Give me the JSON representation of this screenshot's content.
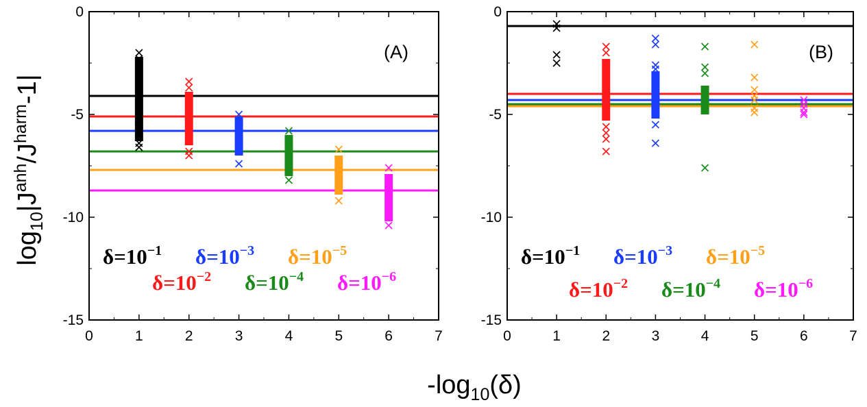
{
  "figure": {
    "ylabel": {
      "pre": "log",
      "sub": "10",
      "mid": "|J",
      "sup1": "anh",
      "slash": "/J",
      "sup2": "harm",
      "post": "-1|"
    },
    "xlabel": {
      "pre": "-log",
      "sub": "10",
      "post": "(δ)"
    }
  },
  "chart_data": [
    {
      "type": "scatter",
      "panel_label": "(A)",
      "xlim": [
        0,
        7
      ],
      "ylim": [
        -15,
        0
      ],
      "xticks": [
        "0",
        "1",
        "2",
        "3",
        "4",
        "5",
        "6",
        "7"
      ],
      "yticks": [
        "0",
        "-5",
        "-10",
        "-15"
      ],
      "legend": [
        {
          "base": "δ=10",
          "exp": "−1",
          "color": "#000000"
        },
        {
          "base": "δ=10",
          "exp": "−3",
          "color": "#1a3cff"
        },
        {
          "base": "δ=10",
          "exp": "−5",
          "color": "#ff9f1a"
        },
        {
          "base": "δ=10",
          "exp": "−2",
          "color": "#ff1a1a"
        },
        {
          "base": "δ=10",
          "exp": "−4",
          "color": "#1a8a1a"
        },
        {
          "base": "δ=10",
          "exp": "−6",
          "color": "#ff1aff"
        }
      ],
      "series": [
        {
          "name": "δ=10^-1",
          "color": "#000000",
          "hline": -4.1,
          "x": 1,
          "range": [
            -6.3,
            -2.2
          ],
          "outliers": [
            -6.6,
            -6.4,
            -2.0,
            -2.3
          ]
        },
        {
          "name": "δ=10^-2",
          "color": "#ff1a1a",
          "hline": -5.1,
          "x": 2,
          "range": [
            -6.5,
            -3.9
          ],
          "outliers": [
            -7.0,
            -6.8,
            -3.4,
            -3.7
          ]
        },
        {
          "name": "δ=10^-3",
          "color": "#1a3cff",
          "hline": -5.8,
          "x": 3,
          "range": [
            -7.0,
            -5.1
          ],
          "outliers": [
            -7.4,
            -5.0
          ]
        },
        {
          "name": "δ=10^-4",
          "color": "#1a8a1a",
          "hline": -6.8,
          "x": 4,
          "range": [
            -8.0,
            -6.0
          ],
          "outliers": [
            -8.2,
            -5.8
          ]
        },
        {
          "name": "δ=10^-5",
          "color": "#ff9f1a",
          "hline": -7.7,
          "x": 5,
          "range": [
            -8.9,
            -7.0
          ],
          "outliers": [
            -9.2,
            -6.7
          ]
        },
        {
          "name": "δ=10^-6",
          "color": "#ff1aff",
          "hline": -8.7,
          "x": 6,
          "range": [
            -10.2,
            -7.9
          ],
          "outliers": [
            -10.4,
            -9.9,
            -7.6
          ]
        }
      ]
    },
    {
      "type": "scatter",
      "panel_label": "(B)",
      "xlim": [
        0,
        7
      ],
      "ylim": [
        -15,
        0
      ],
      "xticks": [
        "0",
        "1",
        "2",
        "3",
        "4",
        "5",
        "6",
        "7"
      ],
      "yticks": [
        "0",
        "-5",
        "-10",
        "-15"
      ],
      "legend": [
        {
          "base": "δ=10",
          "exp": "−1",
          "color": "#000000"
        },
        {
          "base": "δ=10",
          "exp": "−3",
          "color": "#1a3cff"
        },
        {
          "base": "δ=10",
          "exp": "−5",
          "color": "#ff9f1a"
        },
        {
          "base": "δ=10",
          "exp": "−2",
          "color": "#ff1a1a"
        },
        {
          "base": "δ=10",
          "exp": "−4",
          "color": "#1a8a1a"
        },
        {
          "base": "δ=10",
          "exp": "−6",
          "color": "#ff1aff"
        }
      ],
      "series": [
        {
          "name": "δ=10^-1",
          "color": "#000000",
          "hline": -0.7,
          "x": 1,
          "range": null,
          "outliers": [
            -0.6,
            -0.8,
            -2.1,
            -2.5
          ]
        },
        {
          "name": "δ=10^-2",
          "color": "#ff1a1a",
          "hline": -4.0,
          "x": 2,
          "range": [
            -5.3,
            -2.3
          ],
          "outliers": [
            -1.7,
            -2.0,
            -5.6,
            -5.9,
            -6.2,
            -6.8
          ]
        },
        {
          "name": "δ=10^-3",
          "color": "#1a3cff",
          "hline": -4.3,
          "x": 3,
          "range": [
            -5.2,
            -2.9
          ],
          "outliers": [
            -1.3,
            -1.6,
            -2.6,
            -2.8,
            -5.5,
            -6.4
          ]
        },
        {
          "name": "δ=10^-4",
          "color": "#1a8a1a",
          "hline": -4.5,
          "x": 4,
          "range": [
            -5.0,
            -3.6
          ],
          "outliers": [
            -1.7,
            -2.7,
            -3.0,
            -7.6
          ]
        },
        {
          "name": "δ=10^-5",
          "color": "#ff9f1a",
          "hline": -4.6,
          "x": 5,
          "range": null,
          "outliers": [
            -1.6,
            -3.2,
            -3.8,
            -4.1,
            -4.3,
            -4.7,
            -4.9
          ]
        },
        {
          "name": "δ=10^-6",
          "color": "#ff1aff",
          "hline": null,
          "x": 6,
          "range": null,
          "outliers": [
            -4.3,
            -4.5,
            -4.7,
            -4.9,
            -5.0
          ]
        }
      ]
    }
  ]
}
